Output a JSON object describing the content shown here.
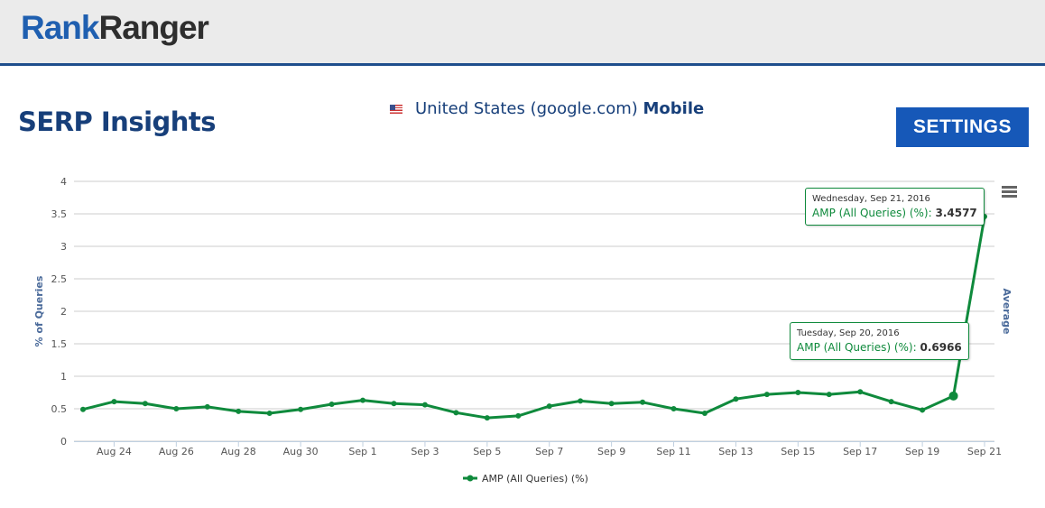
{
  "header": {
    "logo_part1": "Rank",
    "logo_part2": "Ranger"
  },
  "page": {
    "title": "SERP Insights",
    "location": "United States (google.com)",
    "device": "Mobile",
    "settings_label": "SETTINGS",
    "flag_icon": "us-flag-icon"
  },
  "tooltips": [
    {
      "date": "Wednesday, Sep 21, 2016",
      "label": "AMP (All Queries) (%):",
      "value": "3.4577"
    },
    {
      "date": "Tuesday, Sep 20, 2016",
      "label": "AMP (All Queries) (%):",
      "value": "0.6966"
    }
  ],
  "chart_data": {
    "type": "line",
    "ylabel": "% of Queries",
    "y2label": "Average",
    "ylim": [
      0,
      4
    ],
    "yticks": [
      "0",
      "0.5",
      "1",
      "1.5",
      "2",
      "2.5",
      "3",
      "3.5",
      "4"
    ],
    "grid": true,
    "legend_placement": "bottom",
    "color": "#0f8a3c",
    "x": [
      "Aug 23",
      "Aug 24",
      "Aug 25",
      "Aug 26",
      "Aug 27",
      "Aug 28",
      "Aug 29",
      "Aug 30",
      "Aug 31",
      "Sep 1",
      "Sep 2",
      "Sep 3",
      "Sep 4",
      "Sep 5",
      "Sep 6",
      "Sep 7",
      "Sep 8",
      "Sep 9",
      "Sep 10",
      "Sep 11",
      "Sep 12",
      "Sep 13",
      "Sep 14",
      "Sep 15",
      "Sep 16",
      "Sep 17",
      "Sep 18",
      "Sep 19",
      "Sep 20",
      "Sep 21"
    ],
    "xticks": [
      "Aug 24",
      "Aug 26",
      "Aug 28",
      "Aug 30",
      "Sep 1",
      "Sep 3",
      "Sep 5",
      "Sep 7",
      "Sep 9",
      "Sep 11",
      "Sep 13",
      "Sep 15",
      "Sep 17",
      "Sep 19",
      "Sep 21"
    ],
    "series": [
      {
        "name": "AMP (All Queries) (%)",
        "values": [
          0.49,
          0.61,
          0.58,
          0.5,
          0.53,
          0.46,
          0.43,
          0.49,
          0.57,
          0.63,
          0.58,
          0.56,
          0.44,
          0.36,
          0.39,
          0.54,
          0.62,
          0.58,
          0.6,
          0.5,
          0.43,
          0.65,
          0.72,
          0.75,
          0.72,
          0.76,
          0.61,
          0.48,
          0.6966,
          3.4577
        ]
      }
    ]
  }
}
